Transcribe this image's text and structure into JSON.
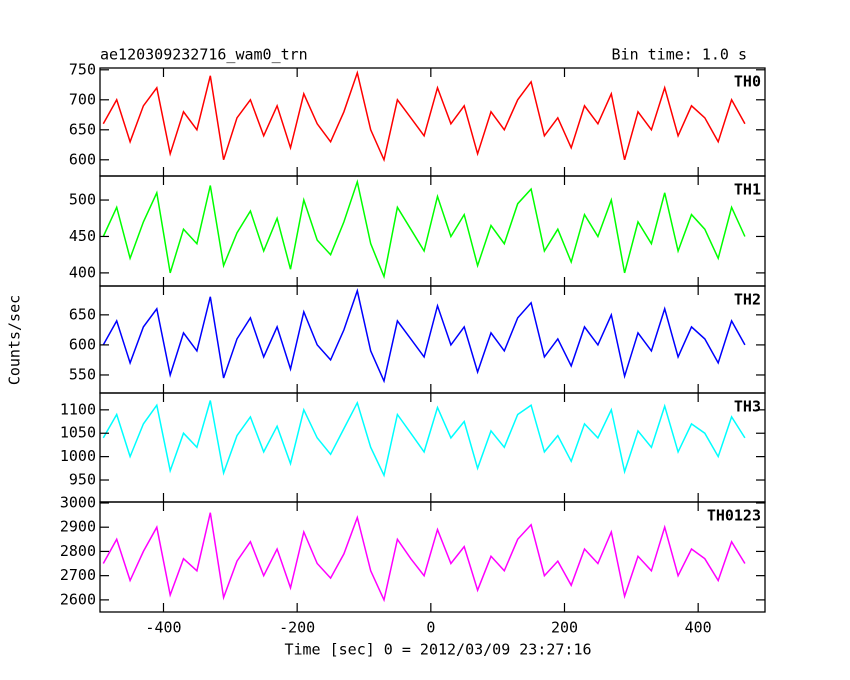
{
  "chart_data": {
    "type": "line",
    "title": "ae120309232716_wam0_trn",
    "subtitle": "Bin time: 1.0 s",
    "ylabel": "Counts/sec",
    "xlabel": "Time [sec] 0 = 2012/03/09 23:27:16",
    "xlim": [
      -495,
      500
    ],
    "xticks": [
      -400,
      -200,
      0,
      200,
      400
    ],
    "x": [
      -490,
      -470,
      -450,
      -430,
      -410,
      -390,
      -370,
      -350,
      -330,
      -310,
      -290,
      -270,
      -250,
      -230,
      -210,
      -190,
      -170,
      -150,
      -130,
      -110,
      -90,
      -70,
      -50,
      -30,
      -10,
      10,
      30,
      50,
      70,
      90,
      110,
      130,
      150,
      170,
      190,
      210,
      230,
      250,
      270,
      290,
      310,
      330,
      350,
      370,
      390,
      410,
      430,
      450,
      470
    ],
    "panels": [
      {
        "name": "TH0",
        "color": "#ff0000",
        "ylim": [
          573,
          753
        ],
        "yticks": [
          600,
          650,
          700,
          750
        ],
        "values": [
          660,
          700,
          630,
          690,
          720,
          610,
          680,
          650,
          740,
          600,
          670,
          700,
          640,
          690,
          620,
          710,
          660,
          630,
          680,
          745,
          650,
          600,
          700,
          670,
          640,
          720,
          660,
          690,
          610,
          680,
          650,
          700,
          730,
          640,
          670,
          620,
          690,
          660,
          710,
          600,
          680,
          650,
          720,
          640,
          690,
          670,
          630,
          700,
          660
        ]
      },
      {
        "name": "TH1",
        "color": "#00ff00",
        "ylim": [
          382,
          533
        ],
        "yticks": [
          400,
          450,
          500
        ],
        "values": [
          450,
          490,
          420,
          470,
          510,
          400,
          460,
          440,
          520,
          410,
          455,
          485,
          430,
          475,
          405,
          500,
          445,
          425,
          470,
          525,
          440,
          395,
          490,
          460,
          430,
          505,
          450,
          480,
          410,
          465,
          440,
          495,
          515,
          430,
          460,
          415,
          480,
          450,
          500,
          400,
          470,
          440,
          510,
          430,
          480,
          460,
          420,
          490,
          450
        ]
      },
      {
        "name": "TH2",
        "color": "#0000ff",
        "ylim": [
          520,
          698
        ],
        "yticks": [
          550,
          600,
          650
        ],
        "values": [
          600,
          640,
          570,
          630,
          660,
          550,
          620,
          590,
          680,
          545,
          610,
          645,
          580,
          630,
          560,
          655,
          600,
          575,
          625,
          690,
          590,
          540,
          640,
          610,
          580,
          665,
          600,
          630,
          555,
          620,
          590,
          645,
          670,
          580,
          610,
          565,
          630,
          600,
          650,
          548,
          620,
          590,
          660,
          580,
          630,
          610,
          570,
          640,
          600
        ]
      },
      {
        "name": "TH3",
        "color": "#00ffff",
        "ylim": [
          903,
          1136
        ],
        "yticks": [
          950,
          1000,
          1050,
          1100
        ],
        "values": [
          1040,
          1090,
          1000,
          1070,
          1110,
          970,
          1050,
          1020,
          1120,
          965,
          1045,
          1085,
          1010,
          1065,
          985,
          1100,
          1040,
          1005,
          1060,
          1115,
          1020,
          960,
          1090,
          1050,
          1010,
          1105,
          1040,
          1075,
          975,
          1055,
          1020,
          1090,
          1110,
          1010,
          1045,
          990,
          1070,
          1040,
          1100,
          968,
          1055,
          1020,
          1108,
          1010,
          1070,
          1050,
          1000,
          1085,
          1040
        ]
      },
      {
        "name": "TH0123",
        "color": "#ff00ff",
        "ylim": [
          2550,
          3004
        ],
        "yticks": [
          2600,
          2700,
          2800,
          2900,
          3000
        ],
        "values": [
          2750,
          2850,
          2680,
          2800,
          2900,
          2620,
          2770,
          2720,
          2960,
          2610,
          2760,
          2840,
          2700,
          2810,
          2650,
          2880,
          2750,
          2690,
          2790,
          2940,
          2720,
          2600,
          2850,
          2770,
          2700,
          2890,
          2750,
          2820,
          2640,
          2780,
          2720,
          2850,
          2910,
          2700,
          2760,
          2660,
          2810,
          2750,
          2880,
          2615,
          2780,
          2720,
          2900,
          2700,
          2810,
          2770,
          2680,
          2840,
          2750
        ]
      }
    ]
  }
}
